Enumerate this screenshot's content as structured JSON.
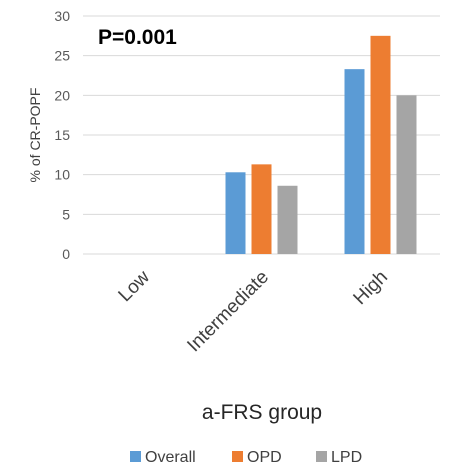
{
  "chart_data": {
    "type": "bar",
    "categories": [
      "Low",
      "Intermediate",
      "High"
    ],
    "series": [
      {
        "name": "Overall",
        "values": [
          0,
          10.3,
          23.3
        ],
        "color": "#5B9BD5"
      },
      {
        "name": "OPD",
        "values": [
          0,
          11.3,
          27.5
        ],
        "color": "#ED7D31"
      },
      {
        "name": "LPD",
        "values": [
          0,
          8.6,
          20.0
        ],
        "color": "#A5A5A5"
      }
    ],
    "yticks": [
      0,
      5,
      10,
      15,
      20,
      25,
      30
    ],
    "ylim": [
      0,
      30
    ],
    "ylabel": "% of CR-POPF",
    "xlabel": "a-FRS group",
    "annotation": "P=0.001",
    "grid": true,
    "legend_position": "bottom"
  }
}
